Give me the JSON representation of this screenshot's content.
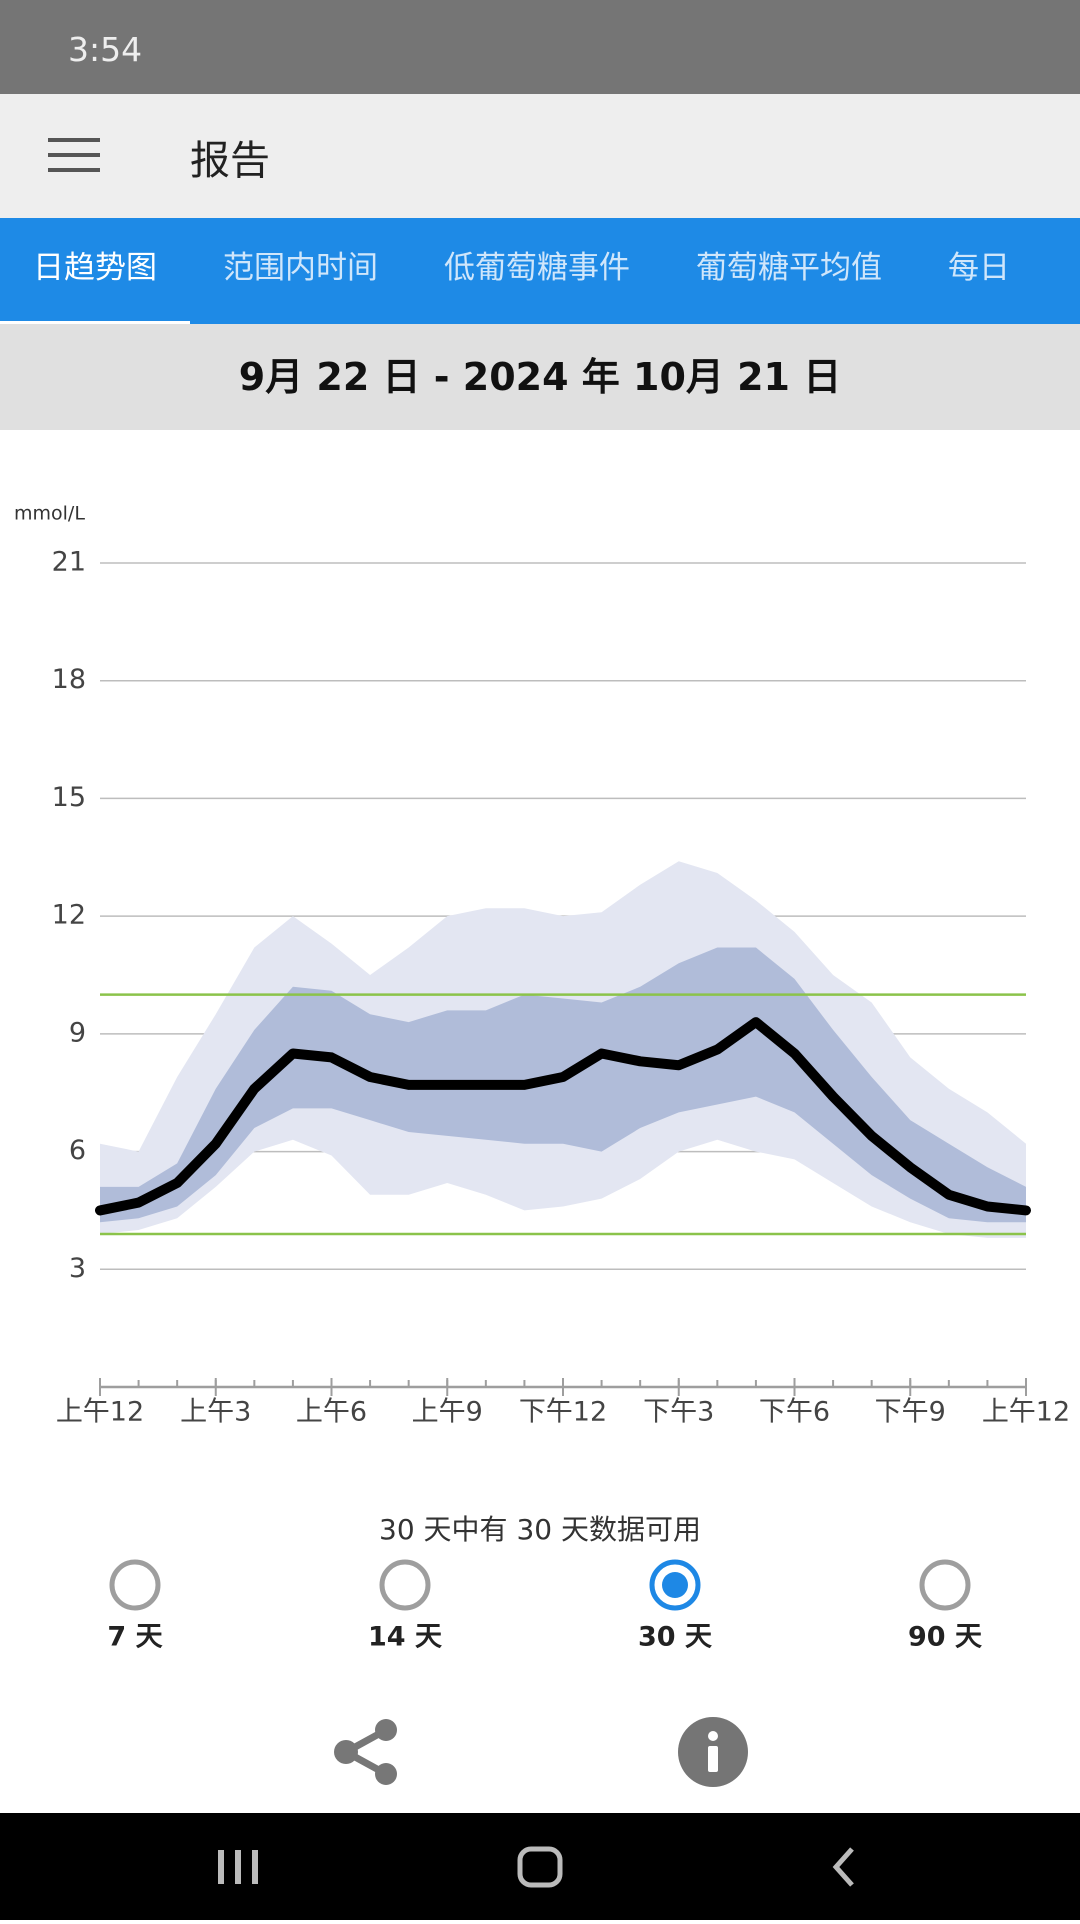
{
  "status_bar": {
    "time": "3:54"
  },
  "app_bar": {
    "title": "报告"
  },
  "tabs": [
    "日趋势图",
    "范围内时间",
    "低葡萄糖事件",
    "葡萄糖平均值",
    "每日"
  ],
  "date_range": "9月 22 日 - 2024 年 10月 21 日",
  "chart_data": {
    "type": "line",
    "y_label": "mmol/L",
    "x": [
      0,
      1,
      2,
      3,
      4,
      5,
      6,
      7,
      8,
      9,
      10,
      11,
      12,
      13,
      14,
      15,
      16,
      17,
      18,
      19,
      20,
      21,
      22,
      23,
      24
    ],
    "xlim": [
      0,
      24
    ],
    "xticks": [
      {
        "value": 0,
        "label": "上午12"
      },
      {
        "value": 3,
        "label": "上午3"
      },
      {
        "value": 6,
        "label": "上午6"
      },
      {
        "value": 9,
        "label": "上午9"
      },
      {
        "value": 12,
        "label": "下午12"
      },
      {
        "value": 15,
        "label": "下午3"
      },
      {
        "value": 18,
        "label": "下午6"
      },
      {
        "value": 21,
        "label": "下午9"
      },
      {
        "value": 24,
        "label": "上午12"
      }
    ],
    "ylim": [
      0,
      21
    ],
    "yticks": [
      3,
      6,
      9,
      12,
      15,
      18,
      21
    ],
    "grid": true,
    "median": {
      "color": "#000000",
      "values": [
        4.5,
        4.7,
        5.2,
        6.2,
        7.6,
        8.5,
        8.4,
        7.9,
        7.7,
        7.7,
        7.7,
        7.7,
        7.9,
        8.5,
        8.3,
        8.2,
        8.6,
        9.3,
        8.5,
        7.4,
        6.4,
        5.6,
        4.9,
        4.6,
        4.5
      ]
    },
    "inner_band": {
      "color": "#b0bcd9",
      "upper": [
        5.1,
        5.1,
        5.7,
        7.6,
        9.1,
        10.2,
        10.1,
        9.5,
        9.3,
        9.6,
        9.6,
        10.0,
        9.9,
        9.8,
        10.2,
        10.8,
        11.2,
        11.2,
        10.4,
        9.1,
        7.9,
        6.8,
        6.2,
        5.6,
        5.1
      ],
      "lower": [
        4.2,
        4.3,
        4.6,
        5.4,
        6.6,
        7.1,
        7.1,
        6.8,
        6.5,
        6.4,
        6.3,
        6.2,
        6.2,
        6.0,
        6.6,
        7.0,
        7.2,
        7.4,
        7.0,
        6.2,
        5.4,
        4.8,
        4.3,
        4.2,
        4.2
      ]
    },
    "outer_band": {
      "color": "#e3e6f2",
      "upper": [
        6.2,
        6.0,
        7.9,
        9.5,
        11.2,
        12.0,
        11.3,
        10.5,
        11.2,
        12.0,
        12.2,
        12.2,
        12.0,
        12.1,
        12.8,
        13.4,
        13.1,
        12.4,
        11.6,
        10.5,
        9.8,
        8.4,
        7.6,
        7.0,
        6.2
      ],
      "lower": [
        3.9,
        4.0,
        4.3,
        5.1,
        6.0,
        6.3,
        5.9,
        4.9,
        4.9,
        5.2,
        4.9,
        4.5,
        4.6,
        4.8,
        5.3,
        6.0,
        6.3,
        6.0,
        5.8,
        5.2,
        4.6,
        4.2,
        3.9,
        3.8,
        3.8
      ]
    },
    "target_range": {
      "color": "#8bc34a",
      "low": 3.9,
      "high": 10.0
    }
  },
  "availability": "30 天中有 30 天数据可用",
  "periods": [
    {
      "label": "7 天",
      "selected": false
    },
    {
      "label": "14 天",
      "selected": false
    },
    {
      "label": "30 天",
      "selected": true
    },
    {
      "label": "90 天",
      "selected": false
    }
  ]
}
